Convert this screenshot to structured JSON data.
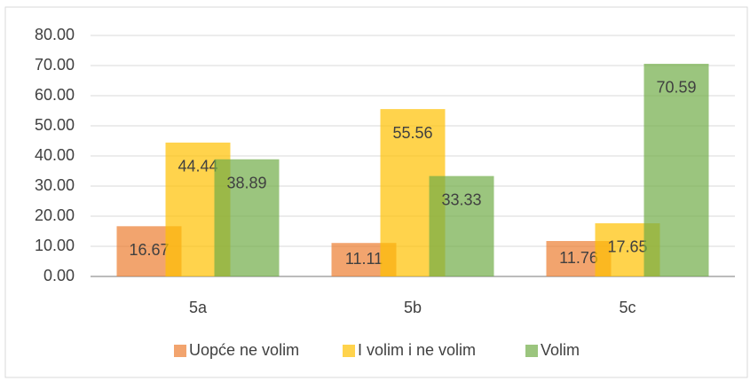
{
  "chart_data": {
    "type": "bar",
    "categories": [
      "5a",
      "5b",
      "5c"
    ],
    "series": [
      {
        "name": "Uopće ne volim",
        "color": "#ed7d31",
        "values": [
          16.67,
          11.11,
          11.76
        ]
      },
      {
        "name": "I volim i ne volim",
        "color": "#ffc000",
        "values": [
          44.44,
          55.56,
          17.65
        ]
      },
      {
        "name": "Volim",
        "color": "#70ad47",
        "values": [
          38.89,
          33.33,
          70.59
        ]
      }
    ],
    "ylim": [
      0,
      80
    ],
    "yticks": [
      {
        "value": 0,
        "label": "0.00"
      },
      {
        "value": 10,
        "label": "10.00"
      },
      {
        "value": 20,
        "label": "20.00"
      },
      {
        "value": 30,
        "label": "30.00"
      },
      {
        "value": 40,
        "label": "40.00"
      },
      {
        "value": 50,
        "label": "50.00"
      },
      {
        "value": 60,
        "label": "60.00"
      },
      {
        "value": 70,
        "label": "70.00"
      },
      {
        "value": 80,
        "label": "80.00"
      }
    ],
    "grid": true,
    "legend": "bottom"
  }
}
